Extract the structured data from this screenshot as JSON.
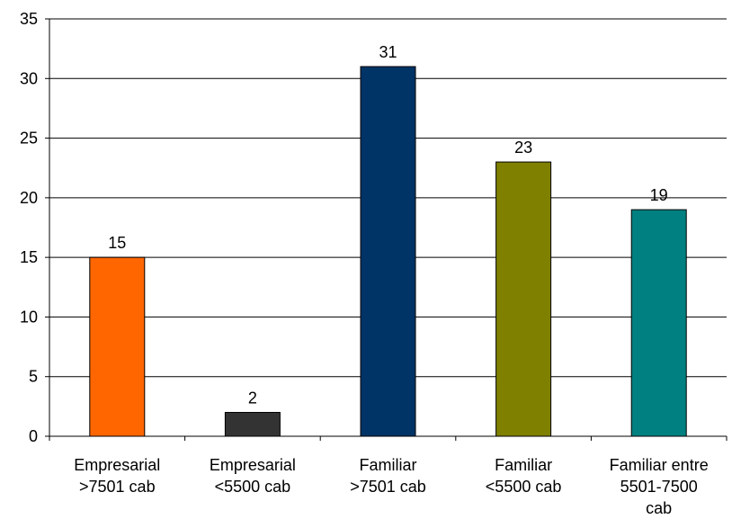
{
  "chart_data": {
    "type": "bar",
    "categories": [
      [
        "Empresarial",
        ">7501 cab"
      ],
      [
        "Empresarial",
        "<5500 cab"
      ],
      [
        "Familiar",
        ">7501 cab"
      ],
      [
        "Familiar",
        "<5500 cab"
      ],
      [
        "Familiar entre",
        "5501-7500",
        "cab"
      ]
    ],
    "values": [
      15,
      2,
      31,
      23,
      19
    ],
    "colors": [
      "#FF6600",
      "#333333",
      "#003366",
      "#808000",
      "#008080"
    ],
    "ylim": [
      0,
      35
    ],
    "yticks": [
      0,
      5,
      10,
      15,
      20,
      25,
      30,
      35
    ],
    "grid": true,
    "data_labels": true
  }
}
